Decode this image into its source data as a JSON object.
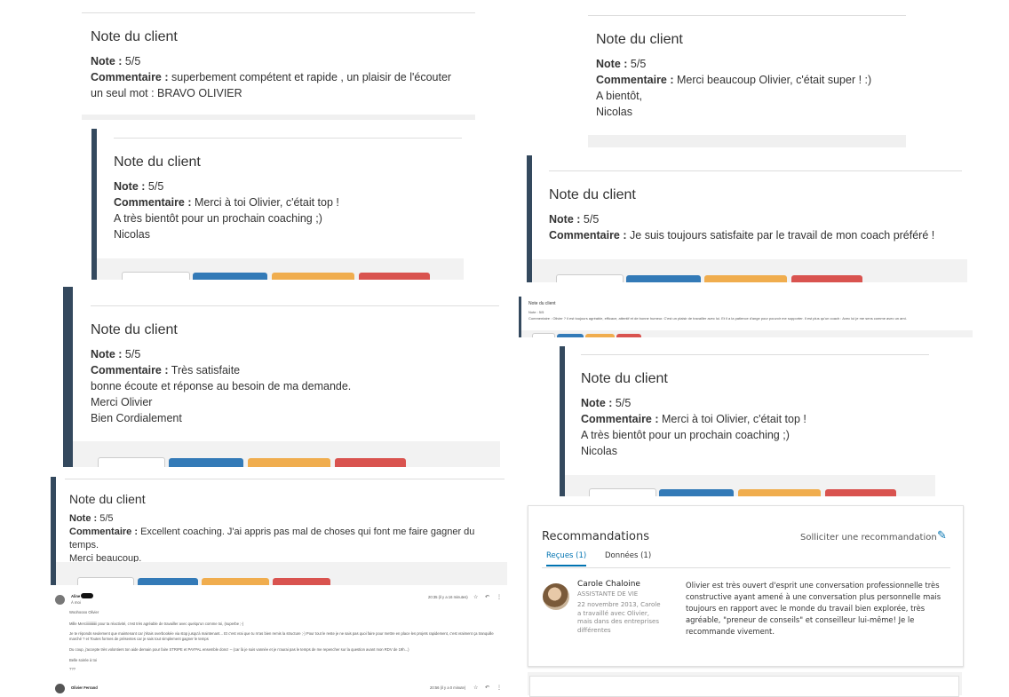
{
  "card_title": "Note du client",
  "note_label": "Note :",
  "comment_label": "Commentaire :",
  "cards": [
    {
      "note": "5/5",
      "comment": "superbement compétent et rapide , un plaisir de l'écouter",
      "lines": [
        "un seul mot : BRAVO OLIVIER"
      ]
    },
    {
      "note": "5/5",
      "comment": "Merci beaucoup Olivier, c'était super ! :)",
      "lines": [
        "A bientôt,",
        "Nicolas"
      ]
    },
    {
      "note": "5/5",
      "comment": "Merci à toi Olivier, c'était top !",
      "lines": [
        "A très bientôt pour un prochain coaching ;)",
        "Nicolas"
      ]
    },
    {
      "note": "5/5",
      "comment": "Je suis toujours satisfaite par le travail de mon coach préféré !",
      "lines": []
    },
    {
      "note": "5/5",
      "comment": "Très satisfaite",
      "lines": [
        "bonne écoute et réponse au besoin de ma demande.",
        "Merci Olivier",
        "Bien Cordialement"
      ]
    },
    {
      "note": "5/5",
      "comment": "Merci à toi Olivier, c'était top !",
      "lines": [
        "A très bientôt pour un prochain coaching ;)",
        "Nicolas"
      ]
    },
    {
      "note": "5/5",
      "comment": "Excellent coaching. J'ai appris pas mal de choses qui font me faire gagner du temps.",
      "lines": [
        "Merci beaucoup."
      ]
    }
  ],
  "mini_card": {
    "title": "Note du client",
    "note": "Note : 5/5",
    "comment": "Commentaire : Olivier ? il est toujours agréable, efficace, attentif et de bonne humeur. C'est un plaisir de travailler avec lui. Et il a la patience d'ange pour pouvoir me supporter. Il est plus qu'un coach : Avec lui je me sens comme avec un ami."
  },
  "email": {
    "sender": "Aline",
    "to": "À moi",
    "date": "20:35 (il y a 16 minutes)",
    "greeting": "Woohoooo Olivier",
    "p1": "Mille Merciiiiiiiiiiiii pour ta réactivité, c'est très agréable de travailler avec quelqu'un comme toi, (superbe ;-)",
    "p2": "Je te réponds seulement que maintenant car j'étais overbookée via stop jusqu'à maintenant... Et c'est vrai que tu m'as bien remis la structure ;-) Pour tout le reste je ne sais pas quoi faire pour mettre en place les projets rapidement, c'est vraiment ça tranquille",
    "p3": "marché ? et Toutes formes de présentes car je sais tout simplement gagner le temps",
    "p4": "Du coup, j'accepte très volontiers ton aide demain pour faire STRIPE et PAYPAL ensemble donc! -- (car là je suis vannée et je n'aurai pas le temps de me repencher sur la question avant mon RDV de 19h...)",
    "sign": "Belle soirée à toi",
    "sign2": "???",
    "reply_sender": "Olivier Ferrand",
    "reply_date": "20:56 (il y a 0 minute)"
  },
  "recommendations": {
    "title": "Recommandations",
    "solicit": "Solliciter une recommandation",
    "tabs": [
      "Reçues (1)",
      "Données (1)"
    ],
    "person_name": "Carole Chaloine",
    "person_role": "ASSISTANTE DE VIE",
    "meta": "22 novembre 2013, Carole a travaillé avec Olivier, mais dans des entreprises différentes",
    "text": "Olivier est très ouvert d'esprit une conversation professionnelle très constructive ayant amené à une conversation plus personnelle mais toujours en rapport avec le monde du travail bien explorée, très agréable, \"preneur de conseils\" et conseilleur lui-même! Je le recommande vivement."
  }
}
